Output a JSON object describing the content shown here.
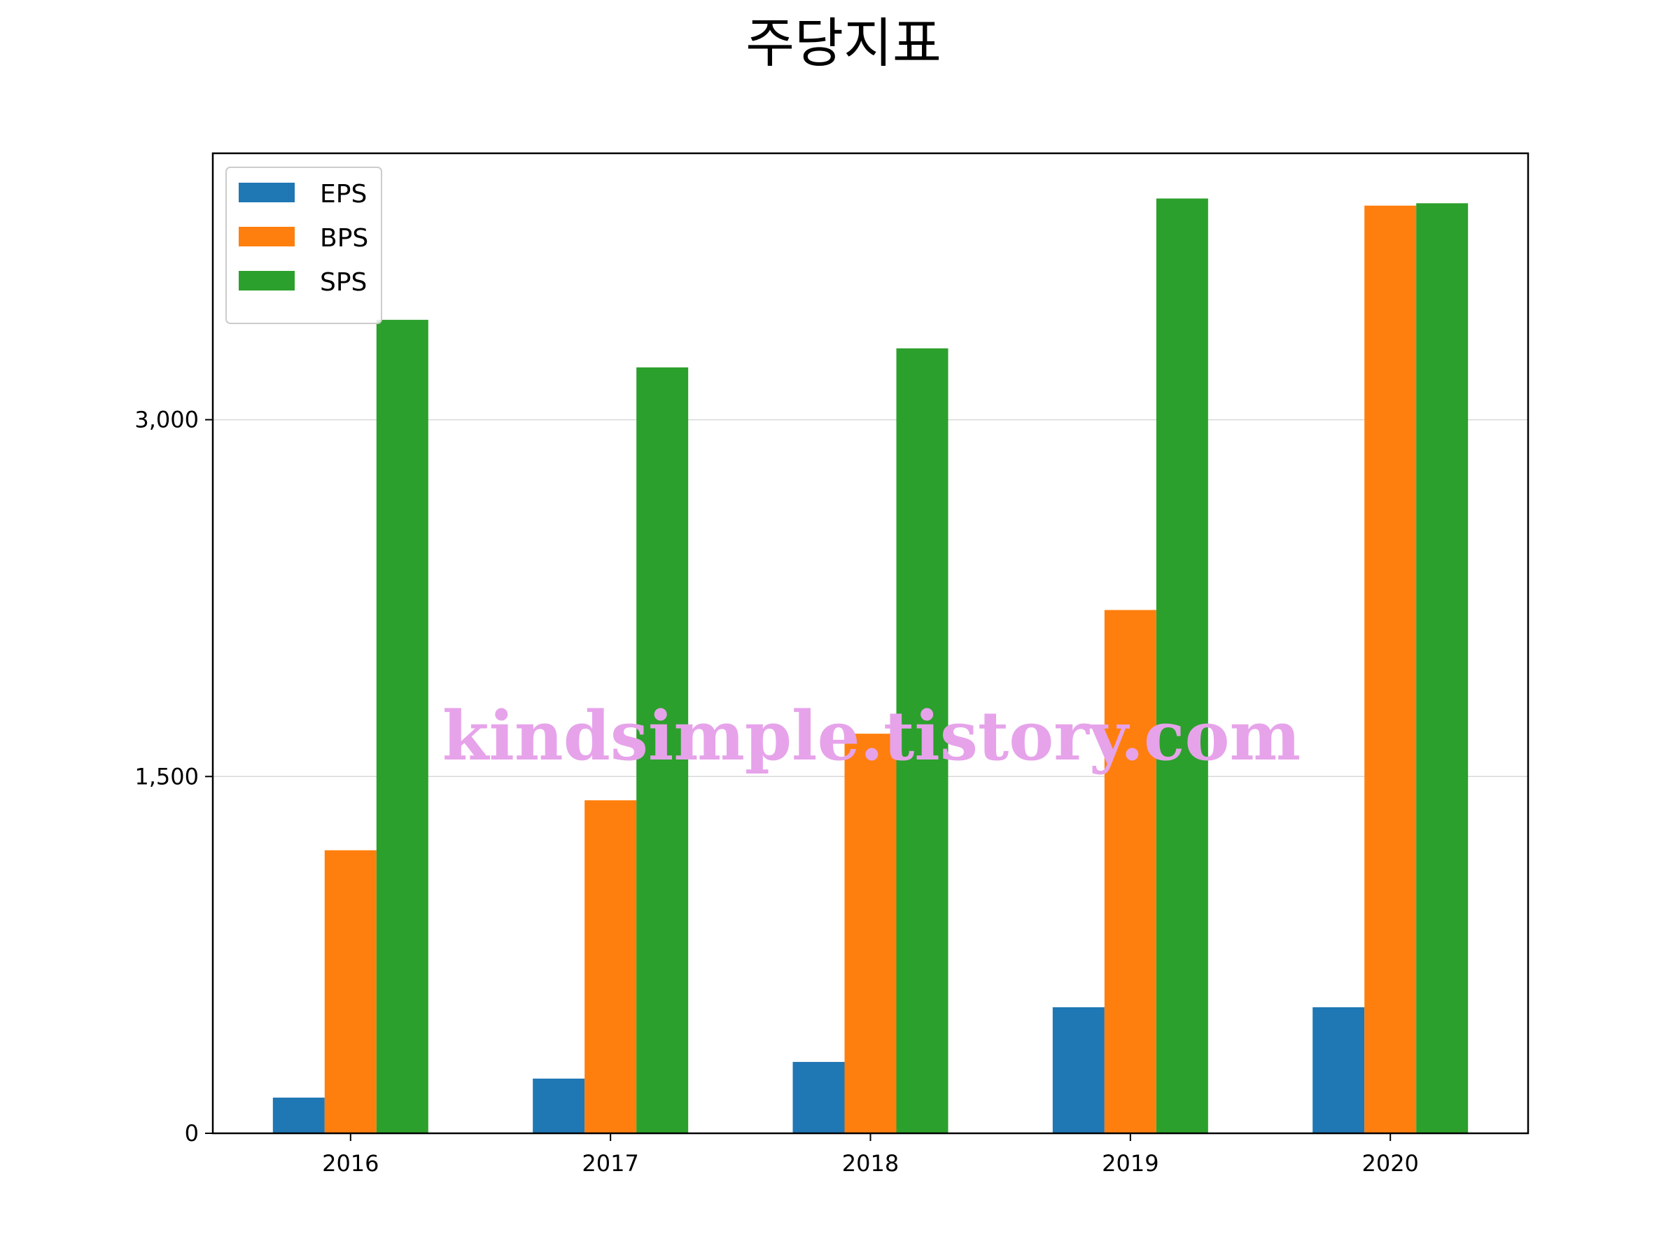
{
  "chart_data": {
    "type": "bar",
    "title": "주당지표",
    "xlabel": "",
    "ylabel": "",
    "categories": [
      "2016",
      "2017",
      "2018",
      "2019",
      "2020"
    ],
    "series": [
      {
        "name": "EPS",
        "color": "#1f77b4",
        "values": [
          150,
          230,
          300,
          530,
          530
        ]
      },
      {
        "name": "BPS",
        "color": "#ff7f0e",
        "values": [
          1190,
          1400,
          1680,
          2200,
          3900
        ]
      },
      {
        "name": "SPS",
        "color": "#2ca02c",
        "values": [
          3420,
          3220,
          3300,
          3930,
          3910
        ]
      }
    ],
    "yticks": [
      0,
      1500,
      3000
    ],
    "ytick_labels": [
      "0",
      "1,500",
      "3,000"
    ],
    "ylim": [
      0,
      4120
    ],
    "grid": "y",
    "legend_position": "upper-left"
  },
  "watermark": "kindsimple.tistory.com"
}
